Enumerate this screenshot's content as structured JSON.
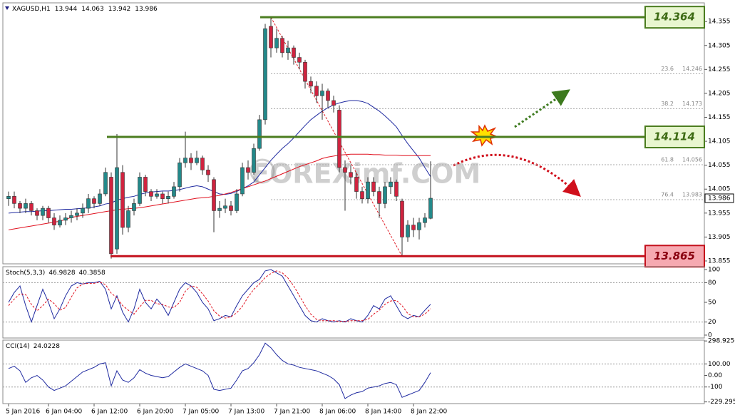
{
  "chart_data": [
    {
      "type": "candlestick",
      "symbol": "XAGUSD,H1",
      "watermark": "FOREXimf.COM",
      "categories": [
        "5 Jan 2016",
        null,
        null,
        null,
        null,
        null,
        null,
        "6 Jan 04:00",
        null,
        null,
        null,
        null,
        null,
        null,
        null,
        "6 Jan 12:00",
        null,
        null,
        null,
        null,
        null,
        null,
        null,
        "6 Jan 20:00",
        null,
        null,
        null,
        null,
        null,
        null,
        null,
        "7 Jan 05:00",
        null,
        null,
        null,
        null,
        null,
        null,
        null,
        "7 Jan 13:00",
        null,
        null,
        null,
        null,
        null,
        null,
        null,
        "7 Jan 21:00",
        null,
        null,
        null,
        null,
        null,
        null,
        null,
        "8 Jan 06:00",
        null,
        null,
        null,
        null,
        null,
        null,
        null,
        "8 Jan 14:00",
        null,
        null,
        null,
        null,
        null,
        null,
        null,
        "8 Jan 22:00",
        null,
        null,
        null
      ],
      "open": [
        13.985,
        13.99,
        13.975,
        13.965,
        13.975,
        13.96,
        13.95,
        13.965,
        13.945,
        13.93,
        13.94,
        13.945,
        13.95,
        13.955,
        13.965,
        13.985,
        13.975,
        13.995,
        14.03,
        13.88,
        14.04,
        13.925,
        13.96,
        13.975,
        14.03,
        14.0,
        13.99,
        13.995,
        13.985,
        13.99,
        14.01,
        14.06,
        14.07,
        14.06,
        14.07,
        14.045,
        14.025,
        13.96,
        13.965,
        13.97,
        13.96,
        13.995,
        14.05,
        14.04,
        14.09,
        14.15,
        14.345,
        14.3,
        14.32,
        14.29,
        14.3,
        14.28,
        14.27,
        14.23,
        14.22,
        14.2,
        14.21,
        14.19,
        14.17,
        14.05,
        14.04,
        14.03,
        14.0,
        13.985,
        14.02,
        14.0,
        13.975,
        14.01,
        14.02,
        13.98,
        13.905,
        13.93,
        13.92,
        13.935,
        13.944
      ],
      "high": [
        14.0,
        14.0,
        13.98,
        13.985,
        13.98,
        13.965,
        13.97,
        13.97,
        13.955,
        13.95,
        13.955,
        13.96,
        13.965,
        13.975,
        13.995,
        13.99,
        14.005,
        14.05,
        14.04,
        14.12,
        14.055,
        13.97,
        13.985,
        14.04,
        14.035,
        14.005,
        14.005,
        14.0,
        14.0,
        14.02,
        14.07,
        14.125,
        14.08,
        14.085,
        14.075,
        14.055,
        14.03,
        13.98,
        13.985,
        13.98,
        14.005,
        14.06,
        14.065,
        14.1,
        14.16,
        14.35,
        14.364,
        14.34,
        14.325,
        14.315,
        14.305,
        14.29,
        14.275,
        14.24,
        14.23,
        14.225,
        14.215,
        14.2,
        14.18,
        14.065,
        14.055,
        14.04,
        14.01,
        14.03,
        14.03,
        14.01,
        14.02,
        14.03,
        14.025,
        13.985,
        13.94,
        13.945,
        13.945,
        13.955,
        14.063
      ],
      "low": [
        13.97,
        13.965,
        13.955,
        13.955,
        13.95,
        13.94,
        13.94,
        13.935,
        13.92,
        13.925,
        13.93,
        13.935,
        13.94,
        13.945,
        13.955,
        13.965,
        13.97,
        13.99,
        13.86,
        13.87,
        13.91,
        13.915,
        13.95,
        13.97,
        13.99,
        13.98,
        13.985,
        13.975,
        13.975,
        13.985,
        14.0,
        14.05,
        14.045,
        14.055,
        14.035,
        14.02,
        13.915,
        13.945,
        13.955,
        13.95,
        13.955,
        13.99,
        14.025,
        14.035,
        14.085,
        14.14,
        14.28,
        14.29,
        14.28,
        14.275,
        14.265,
        14.255,
        14.215,
        14.205,
        14.185,
        14.15,
        14.175,
        14.165,
        14.04,
        13.96,
        14.015,
        13.985,
        13.975,
        13.975,
        13.99,
        13.945,
        13.965,
        13.995,
        13.98,
        13.865,
        13.895,
        13.905,
        13.9,
        13.925,
        13.942
      ],
      "close": [
        13.99,
        13.975,
        13.965,
        13.975,
        13.96,
        13.95,
        13.965,
        13.945,
        13.93,
        13.94,
        13.945,
        13.95,
        13.955,
        13.965,
        13.985,
        13.975,
        13.995,
        14.04,
        13.87,
        14.05,
        13.925,
        13.96,
        13.975,
        14.03,
        14.0,
        13.99,
        13.995,
        13.985,
        13.99,
        14.01,
        14.06,
        14.07,
        14.06,
        14.07,
        14.045,
        14.035,
        13.96,
        13.965,
        13.97,
        13.96,
        13.995,
        14.05,
        14.04,
        14.09,
        14.15,
        14.34,
        14.3,
        14.32,
        14.29,
        14.3,
        14.28,
        14.27,
        14.23,
        14.22,
        14.2,
        14.21,
        14.19,
        14.18,
        14.05,
        14.04,
        14.03,
        14.0,
        13.985,
        14.02,
        14.0,
        13.975,
        14.01,
        14.02,
        13.99,
        13.905,
        13.93,
        13.92,
        13.935,
        13.945,
        13.986
      ],
      "up_color": "#23898a",
      "down_color": "#d0233f",
      "ylim": [
        13.849,
        14.394
      ],
      "yticks": [
        14.355,
        14.305,
        14.255,
        14.205,
        14.155,
        14.105,
        14.055,
        14.005,
        13.955,
        13.905,
        13.855
      ],
      "series": [
        {
          "color": "#1f2aa0",
          "values": [
            13.955,
            13.956,
            13.957,
            13.958,
            13.958,
            13.959,
            13.96,
            13.96,
            13.961,
            13.962,
            13.963,
            13.963,
            13.964,
            13.965,
            13.966,
            13.968,
            13.97,
            13.974,
            13.976,
            13.982,
            13.985,
            13.988,
            13.99,
            13.994,
            13.997,
            13.999,
            14.0,
            14.001,
            14.001,
            14.002,
            14.004,
            14.007,
            14.01,
            14.012,
            14.01,
            14.005,
            14.0,
            13.995,
            13.994,
            13.996,
            14.0,
            14.006,
            14.012,
            14.02,
            14.035,
            14.05,
            14.065,
            14.078,
            14.09,
            14.1,
            14.112,
            14.125,
            14.138,
            14.15,
            14.159,
            14.168,
            14.175,
            14.181,
            14.185,
            14.188,
            14.19,
            14.19,
            14.188,
            14.184,
            14.176,
            14.168,
            14.158,
            14.147,
            14.135,
            14.117,
            14.1,
            14.085,
            14.07,
            14.05,
            14.031
          ]
        },
        {
          "color": "#e0101e",
          "values": [
            13.92,
            13.922,
            13.924,
            13.926,
            13.928,
            13.93,
            13.932,
            13.934,
            13.936,
            13.938,
            13.942,
            13.946,
            13.948,
            13.95,
            13.952,
            13.954,
            13.956,
            13.958,
            13.96,
            13.962,
            13.963,
            13.964,
            13.965,
            13.966,
            13.968,
            13.97,
            13.972,
            13.974,
            13.976,
            13.978,
            13.98,
            13.982,
            13.984,
            13.986,
            13.987,
            13.988,
            13.99,
            13.992,
            13.995,
            13.998,
            14.002,
            14.006,
            14.01,
            14.014,
            14.018,
            14.022,
            14.027,
            14.032,
            14.037,
            14.042,
            14.047,
            14.052,
            14.056,
            14.06,
            14.064,
            14.069,
            14.072,
            14.074,
            14.076,
            14.077,
            14.078,
            14.078,
            14.078,
            14.078,
            14.077,
            14.077,
            14.076,
            14.076,
            14.076,
            14.075,
            14.075,
            14.075,
            14.075,
            14.075,
            14.075
          ]
        }
      ],
      "levels": [
        {
          "value": 14.364,
          "color": "#4b7d1f"
        },
        {
          "value": 14.114,
          "color": "#4b7d1f"
        },
        {
          "value": 13.865,
          "color": "#c4101c"
        }
      ],
      "fib": [
        {
          "level": 23.6,
          "value": 14.246
        },
        {
          "level": 38.2,
          "value": 14.173
        },
        {
          "level": 61.8,
          "value": 14.056
        },
        {
          "level": 76.4,
          "value": 13.983
        }
      ]
    },
    {
      "type": "line",
      "title": "Stoch(5,3,3)",
      "ylim": [
        -4.4,
        104.4
      ],
      "yticks": [
        100,
        80,
        50,
        20,
        0
      ],
      "levels": [
        80,
        20
      ],
      "series": [
        {
          "color": "#1f2aa0",
          "dashed": false,
          "values": [
            50,
            65,
            75,
            45,
            20,
            45,
            70,
            50,
            25,
            40,
            60,
            75,
            80,
            78,
            80,
            80,
            82,
            70,
            40,
            60,
            35,
            20,
            40,
            70,
            50,
            40,
            55,
            45,
            30,
            50,
            70,
            80,
            75,
            65,
            50,
            40,
            22,
            25,
            30,
            28,
            45,
            60,
            70,
            80,
            85,
            98,
            100,
            95,
            90,
            75,
            60,
            45,
            30,
            22,
            20,
            25,
            22,
            20,
            22,
            20,
            25,
            22,
            20,
            30,
            45,
            40,
            55,
            60,
            45,
            30,
            25,
            30,
            28,
            38,
            46.9828
          ]
        },
        {
          "color": "#e0101e",
          "dashed": true,
          "values": [
            45,
            55,
            63,
            62,
            47,
            37,
            45,
            55,
            48,
            38,
            42,
            58,
            72,
            78,
            79,
            79,
            81,
            77,
            64,
            57,
            45,
            38,
            32,
            43,
            53,
            53,
            48,
            47,
            43,
            42,
            50,
            67,
            75,
            73,
            63,
            52,
            37,
            29,
            26,
            28,
            34,
            44,
            58,
            70,
            78,
            88,
            94,
            98,
            95,
            87,
            75,
            60,
            45,
            32,
            24,
            22,
            22,
            22,
            21,
            21,
            22,
            22,
            22,
            24,
            32,
            38,
            47,
            52,
            53,
            45,
            33,
            28,
            28,
            32,
            40.3858
          ]
        }
      ]
    },
    {
      "type": "line",
      "title": "CCI(14)",
      "ylim": [
        -244,
        306
      ],
      "yticks": [
        298.9256,
        {
          "value": 100,
          "label": "100.00"
        },
        {
          "value": 0,
          "label": "0.00"
        },
        -100,
        -229.295
      ],
      "levels": [
        100,
        -100
      ],
      "series": [
        {
          "color": "#1f2aa0",
          "dashed": false,
          "values": [
            60,
            80,
            40,
            -60,
            -20,
            0,
            -40,
            -100,
            -130,
            -110,
            -90,
            -50,
            -10,
            30,
            50,
            70,
            100,
            110,
            -90,
            40,
            -40,
            -60,
            -20,
            50,
            20,
            0,
            -10,
            -20,
            -10,
            30,
            70,
            100,
            80,
            60,
            40,
            0,
            -120,
            -130,
            -120,
            -110,
            -40,
            40,
            60,
            110,
            180,
            280,
            240,
            180,
            130,
            100,
            90,
            70,
            60,
            50,
            40,
            20,
            0,
            -30,
            -80,
            -200,
            -170,
            -150,
            -140,
            -110,
            -100,
            -90,
            -70,
            -60,
            -80,
            -190,
            -170,
            -150,
            -130,
            -60,
            24.0228
          ]
        }
      ]
    }
  ]
}
